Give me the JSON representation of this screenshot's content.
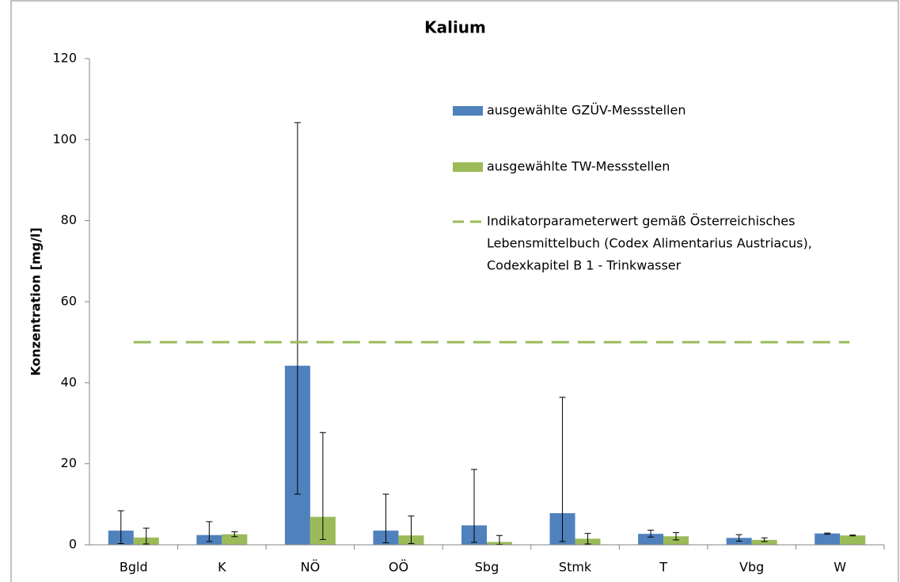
{
  "chart_data": {
    "type": "bar",
    "title": "Kalium",
    "y_label": "Konzentration [mg/l]",
    "categories": [
      "Bgld",
      "K",
      "NÖ",
      "OÖ",
      "Sbg",
      "Stmk",
      "T",
      "Vbg",
      "W"
    ],
    "series": [
      {
        "name": "ausgewählte GZÜV-Messstellen",
        "color": "#4f81bd",
        "values": [
          3.5,
          2.4,
          44.2,
          3.5,
          4.8,
          7.8,
          2.7,
          1.7,
          2.8
        ],
        "min": [
          0.3,
          0.8,
          12.5,
          0.5,
          0.6,
          0.8,
          1.9,
          0.9,
          2.6
        ],
        "max": [
          8.4,
          5.7,
          104.2,
          12.5,
          18.6,
          36.4,
          3.6,
          2.5,
          2.9
        ]
      },
      {
        "name": "ausgewählte TW-Messstellen",
        "color": "#9bbb59",
        "values": [
          1.8,
          2.6,
          6.9,
          2.3,
          0.7,
          1.5,
          2.1,
          1.2,
          2.3
        ],
        "min": [
          0.2,
          2.0,
          1.3,
          0.3,
          0.1,
          0.2,
          1.2,
          0.8,
          2.2
        ],
        "max": [
          4.1,
          3.2,
          27.7,
          7.1,
          2.3,
          2.8,
          3.0,
          1.7,
          2.4
        ]
      }
    ],
    "reference_line": {
      "value": 50,
      "color": "#9bbb59",
      "label_lines": [
        "Indikatorparameterwert gemäß Österreichisches",
        "Lebensmittelbuch (Codex Alimentarius Austriacus),",
        "Codexkapitel B 1 - Trinkwasser"
      ]
    },
    "ylim": [
      0,
      120
    ],
    "yticks": [
      0,
      20,
      40,
      60,
      80,
      100,
      120
    ]
  }
}
